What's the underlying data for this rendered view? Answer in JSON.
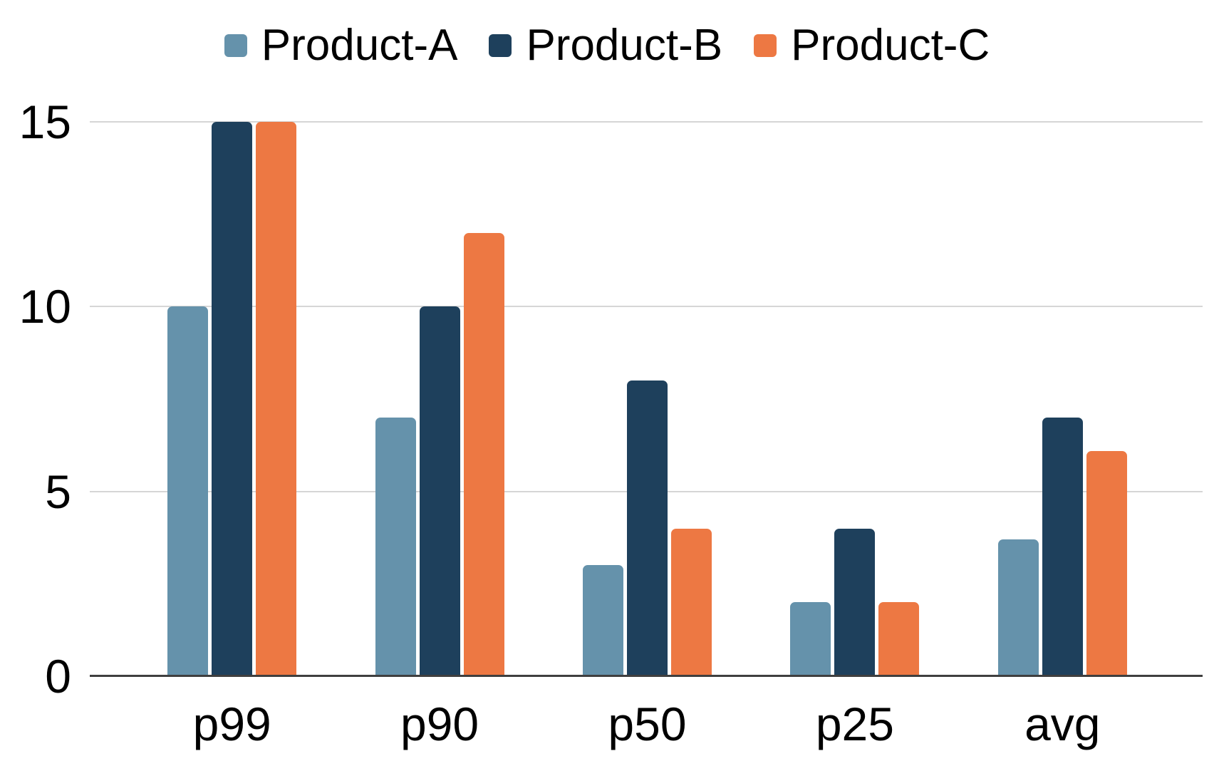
{
  "chart_data": {
    "type": "bar",
    "title": "",
    "categories": [
      "p99",
      "p90",
      "p50",
      "p25",
      "avg"
    ],
    "series": [
      {
        "name": "Product-A",
        "color": "#6592AB",
        "values": [
          10,
          7,
          3,
          2,
          3.7
        ]
      },
      {
        "name": "Product-B",
        "color": "#1E405C",
        "values": [
          15,
          10,
          8,
          4,
          7
        ]
      },
      {
        "name": "Product-C",
        "color": "#ED7843",
        "values": [
          15,
          12,
          4,
          2,
          6.1
        ]
      }
    ],
    "ylim": [
      0,
      15
    ],
    "yticks": [
      0,
      5,
      10,
      15
    ],
    "grid": true,
    "legend_position": "top",
    "colors": {
      "gridline": "#D6D6D6",
      "axis": "#3F3F3F",
      "text": "#000000",
      "background": "#FFFFFF"
    }
  }
}
